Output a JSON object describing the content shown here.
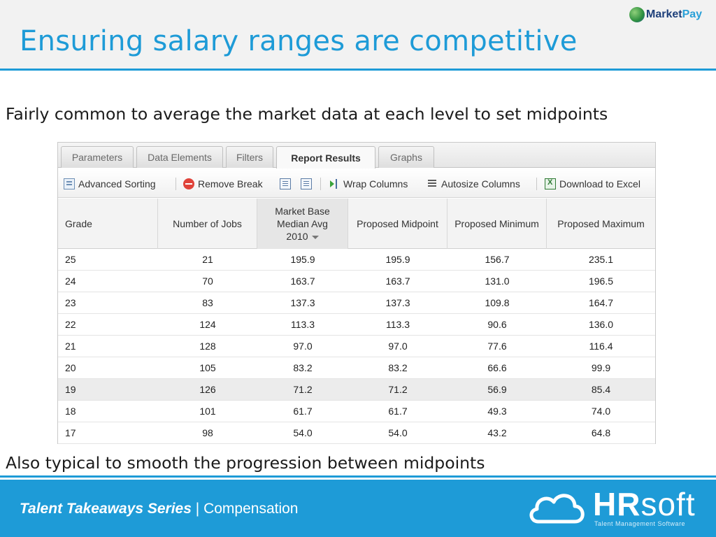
{
  "slide": {
    "title": "Ensuring salary ranges are competitive",
    "bullet1": "Fairly common to average the market data at each level to set midpoints",
    "bullet2": "Also typical to smooth the progression between midpoints",
    "footer_series": "Talent Takeaways Series",
    "footer_sep": "|",
    "footer_topic": "Compensation"
  },
  "logos": {
    "marketpay_a": "Market",
    "marketpay_b": "Pay",
    "hrsoft_a": "HR",
    "hrsoft_b": "soft",
    "hrsoft_tagline": "Talent Management Software"
  },
  "tabs": [
    "Parameters",
    "Data Elements",
    "Filters",
    "Report Results",
    "Graphs"
  ],
  "active_tab": "Report Results",
  "toolbar": {
    "advanced_sorting": "Advanced Sorting",
    "remove_break": "Remove Break",
    "wrap_columns": "Wrap Columns",
    "autosize_columns": "Autosize Columns",
    "download_excel": "Download to Excel"
  },
  "table": {
    "headers": {
      "grade": "Grade",
      "jobs": "Number of Jobs",
      "market_l1": "Market Base",
      "market_l2": "Median Avg",
      "market_l3": "2010",
      "midpoint": "Proposed Midpoint",
      "minimum": "Proposed Minimum",
      "maximum": "Proposed Maximum"
    },
    "rows": [
      [
        "25",
        "21",
        "195.9",
        "195.9",
        "156.7",
        "235.1"
      ],
      [
        "24",
        "70",
        "163.7",
        "163.7",
        "131.0",
        "196.5"
      ],
      [
        "23",
        "83",
        "137.3",
        "137.3",
        "109.8",
        "164.7"
      ],
      [
        "22",
        "124",
        "113.3",
        "113.3",
        "90.6",
        "136.0"
      ],
      [
        "21",
        "128",
        "97.0",
        "97.0",
        "77.6",
        "116.4"
      ],
      [
        "20",
        "105",
        "83.2",
        "83.2",
        "66.6",
        "99.9"
      ],
      [
        "19",
        "126",
        "71.2",
        "71.2",
        "56.9",
        "85.4"
      ],
      [
        "18",
        "101",
        "61.7",
        "61.7",
        "49.3",
        "74.0"
      ],
      [
        "17",
        "98",
        "54.0",
        "54.0",
        "43.2",
        "64.8"
      ]
    ],
    "highlighted_row": 6
  },
  "colors": {
    "accent": "#1e9bd7",
    "header_bg": "#f2f2f2",
    "remove_icon": "#e0433a",
    "excel_icon": "#2f7a34"
  }
}
